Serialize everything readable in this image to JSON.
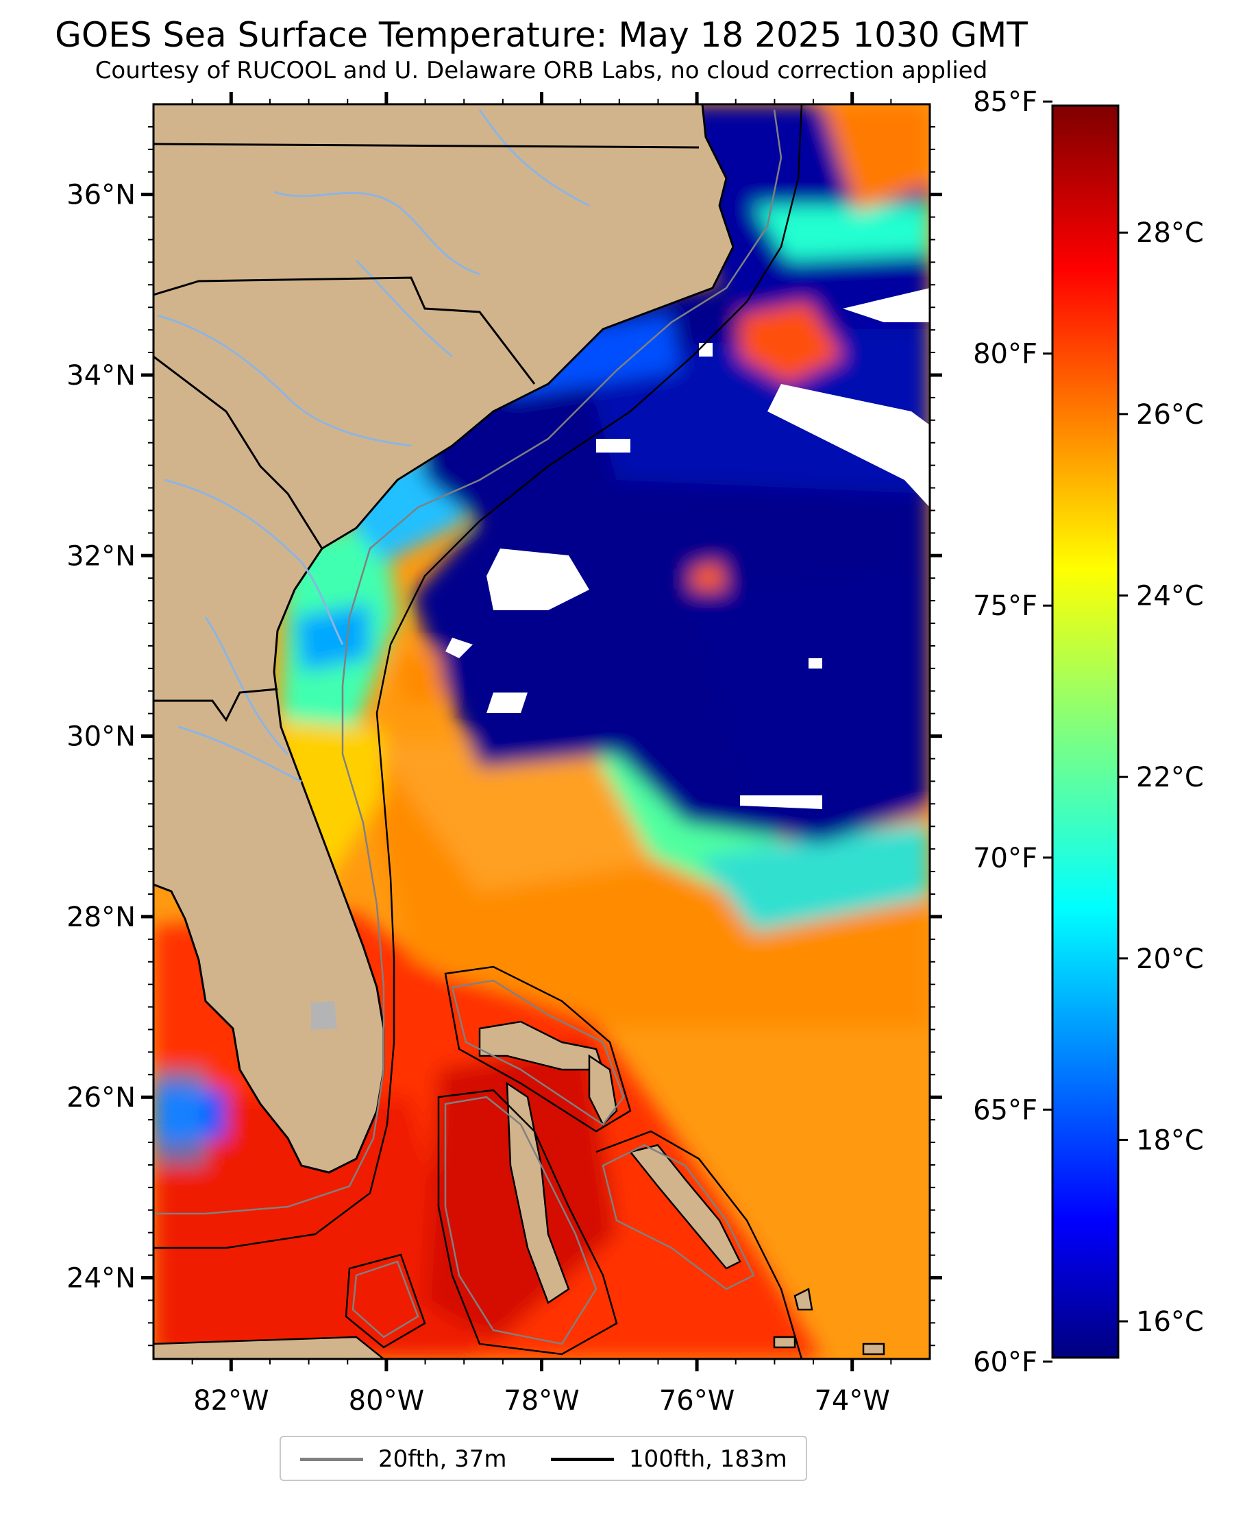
{
  "title": "GOES Sea Surface Temperature: May 18 2025 1030 GMT",
  "subtitle": "Courtesy of RUCOOL and U. Delaware ORB Labs, no cloud correction applied",
  "map": {
    "lon_range": [
      -83,
      -73
    ],
    "lat_range": [
      23.1,
      37.0
    ],
    "lat_ticks": [
      "24°N",
      "26°N",
      "28°N",
      "30°N",
      "32°N",
      "34°N",
      "36°N"
    ],
    "lon_ticks": [
      "82°W",
      "80°W",
      "78°W",
      "76°W",
      "74°W"
    ],
    "land_color": "#d2b48c",
    "river_color": "#8fb4e0",
    "lake_color": "#b4b4b4"
  },
  "colorbar": {
    "colormap": "jet",
    "range_c": [
      15.6,
      29.4
    ],
    "celsius_labels": [
      "28°C",
      "26°C",
      "24°C",
      "22°C",
      "20°C",
      "18°C",
      "16°C"
    ],
    "fahrenheit_labels": [
      "85°F",
      "80°F",
      "75°F",
      "70°F",
      "65°F",
      "60°F"
    ]
  },
  "legend": {
    "items": [
      {
        "label": "20fth, 37m",
        "color": "#808080"
      },
      {
        "label": "100fth, 183m",
        "color": "#000000"
      }
    ]
  }
}
